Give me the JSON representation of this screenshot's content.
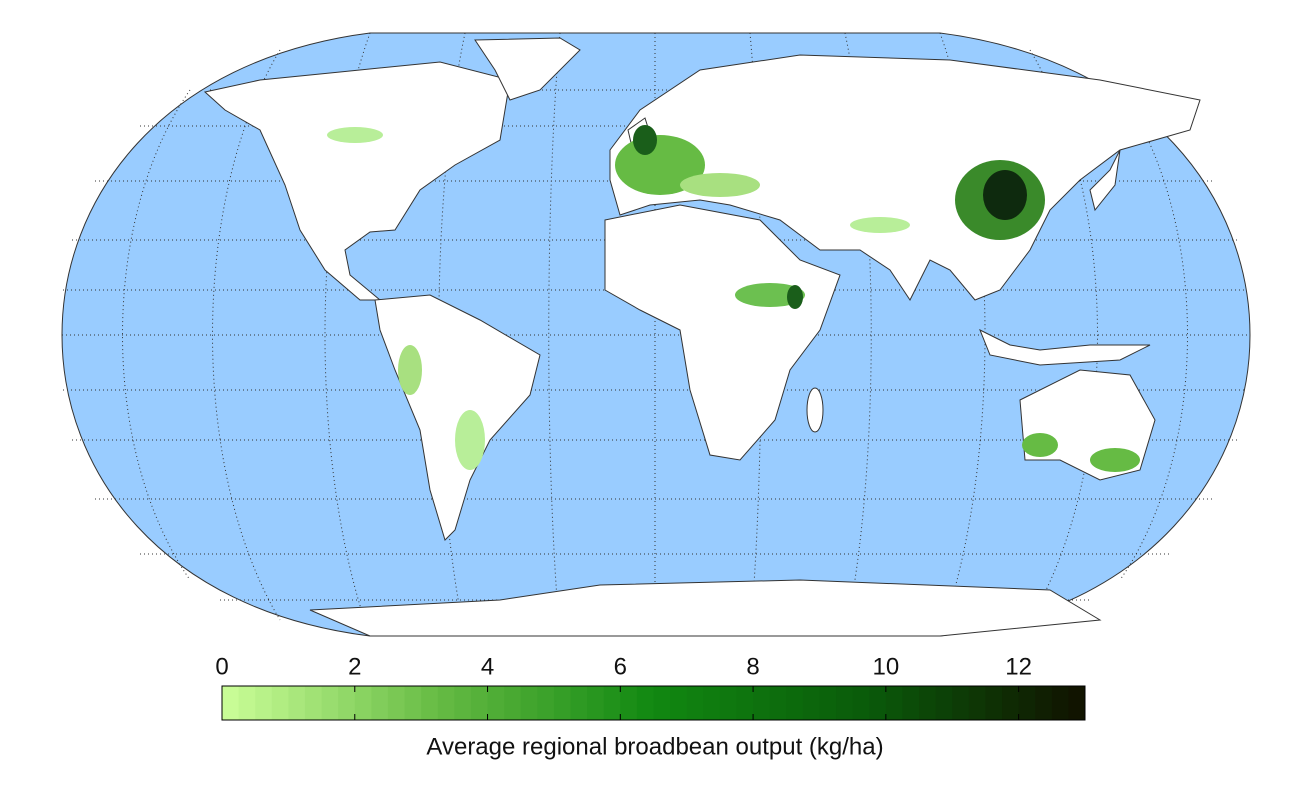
{
  "colorbar": {
    "label": "Average regional broadbean output (kg/ha)",
    "lim": [
      0,
      13
    ],
    "ticks": [
      0,
      2,
      4,
      6,
      8,
      10,
      12
    ],
    "colors": [
      "#ccff99",
      "#66bb44",
      "#118811",
      "#0a5a0a",
      "#111100"
    ]
  }
}
